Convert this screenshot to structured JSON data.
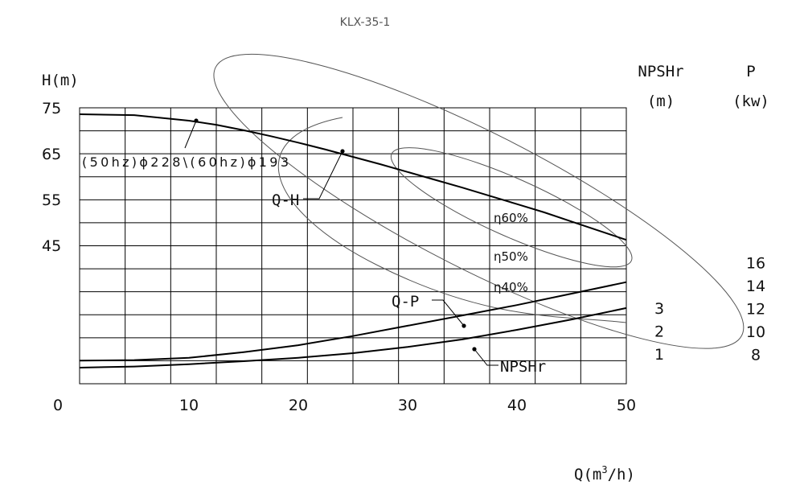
{
  "chart_data": {
    "type": "line",
    "title": "KLX-35-1",
    "xlabel": "Q(m³/h)",
    "xlabel_base": "Q(m",
    "xlabel_sup": "3",
    "xlabel_tail": "/h)",
    "ylabel": "H(m)",
    "ylabel_npsh": [
      "NPSHr",
      "(m)"
    ],
    "ylabel_power": [
      "P",
      "(kw)"
    ],
    "xlim": [
      0,
      50
    ],
    "x_ticks": [
      0,
      10,
      20,
      30,
      40,
      50
    ],
    "x_tick_labels": [
      "0",
      "10",
      "20",
      "30",
      "40",
      "50"
    ],
    "h_ticks": [
      75,
      65,
      55,
      45
    ],
    "h_tick_labels": [
      "75",
      "65",
      "55",
      "45"
    ],
    "npsh_ticks": [
      3,
      2,
      1
    ],
    "npsh_tick_labels": [
      "3",
      "2",
      "1"
    ],
    "power_ticks": [
      16,
      14,
      12,
      10,
      8
    ],
    "power_tick_labels": [
      "16",
      "14",
      "12",
      "10",
      "8"
    ],
    "grid": true,
    "series": [
      {
        "name": "Q-H",
        "axis": "H",
        "x": [
          0,
          5,
          10,
          12.5,
          15,
          17.5,
          20,
          22.5,
          25,
          27.5,
          30,
          32.5,
          35,
          37.5,
          40,
          42.5,
          45,
          47.5,
          50
        ],
        "values": [
          73.6,
          73.4,
          72.2,
          71.3,
          70.1,
          68.8,
          67.4,
          65.9,
          64.3,
          62.7,
          61.0,
          59.3,
          57.6,
          55.8,
          54.0,
          52.2,
          50.2,
          48.2,
          46.2
        ]
      },
      {
        "name": "Q-P",
        "axis": "P",
        "x": [
          0,
          5,
          10,
          15,
          20,
          25,
          30,
          35,
          40,
          45,
          50
        ],
        "values": [
          7.45,
          7.5,
          7.7,
          8.2,
          8.8,
          9.6,
          10.5,
          11.4,
          12.3,
          13.3,
          14.3
        ]
      },
      {
        "name": "NPSHr",
        "axis": "NPSHr",
        "x": [
          0,
          5,
          10,
          15,
          20,
          25,
          30,
          35,
          40,
          45,
          50
        ],
        "values": [
          0.4,
          0.45,
          0.55,
          0.68,
          0.83,
          1.03,
          1.3,
          1.63,
          2.05,
          2.5,
          3.0
        ]
      }
    ],
    "efficiency_curves": [
      {
        "label": "η60%",
        "center": [
          39.5,
          53.3
        ],
        "radius_x": 12,
        "radius_y": 6.3
      },
      {
        "label": "η50%",
        "center": [
          36.5,
          54.6
        ],
        "radius_x": 27,
        "radius_y": 14.8
      }
    ],
    "efficiency_40_label": "η40%",
    "annotations": {
      "impeller": "(50hz)ϕ228\\(60hz)ϕ193",
      "q_h": "Q-H",
      "q_p": "Q-P",
      "npshr": "NPSHr"
    }
  }
}
